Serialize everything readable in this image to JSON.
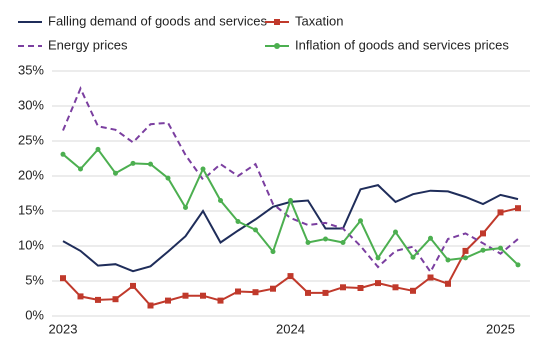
{
  "chart_data": {
    "type": "line",
    "categories": [
      "2023",
      null,
      null,
      null,
      null,
      null,
      null,
      null,
      null,
      null,
      null,
      null,
      null,
      "2024",
      null,
      null,
      null,
      null,
      null,
      null,
      null,
      null,
      null,
      null,
      null,
      "2025",
      null
    ],
    "series": [
      {
        "name": "Falling demand of goods and services",
        "color": "#1f2d5a",
        "marker": "none",
        "dash": false,
        "values": [
          10.7,
          9.3,
          7.2,
          7.4,
          6.4,
          7.1,
          9.2,
          11.4,
          15.0,
          10.5,
          12.2,
          13.8,
          15.6,
          16.3,
          16.5,
          12.5,
          12.5,
          18.1,
          18.7,
          16.3,
          17.4,
          17.9,
          17.8,
          17.0,
          16.0,
          17.3,
          16.7
        ]
      },
      {
        "name": "Taxation",
        "color": "#c0392b",
        "marker": "square",
        "dash": false,
        "values": [
          5.4,
          2.8,
          2.3,
          2.4,
          4.3,
          1.5,
          2.2,
          2.9,
          2.9,
          2.2,
          3.5,
          3.4,
          3.9,
          5.7,
          3.3,
          3.3,
          4.1,
          4.0,
          4.7,
          4.1,
          3.6,
          5.5,
          4.6,
          9.3,
          11.8,
          14.8,
          15.4
        ]
      },
      {
        "name": "Energy prices",
        "color": "#7b3fa0",
        "marker": "none",
        "dash": true,
        "values": [
          26.5,
          32.5,
          27.1,
          26.6,
          24.8,
          27.4,
          27.6,
          23.0,
          19.5,
          21.7,
          20.0,
          21.7,
          16.0,
          14.0,
          13.0,
          13.3,
          12.5,
          10.0,
          7.0,
          9.3,
          9.9,
          6.3,
          11.0,
          11.8,
          10.4,
          8.9,
          11.0
        ]
      },
      {
        "name": "Inflation of goods and services prices",
        "color": "#4caf50",
        "marker": "circle",
        "dash": false,
        "values": [
          23.1,
          21.0,
          23.8,
          20.4,
          21.8,
          21.7,
          19.7,
          15.5,
          21.0,
          16.5,
          13.5,
          12.3,
          9.2,
          16.5,
          10.5,
          11.0,
          10.5,
          13.6,
          8.3,
          12.0,
          8.4,
          11.1,
          8.0,
          8.3,
          9.4,
          9.7,
          7.3
        ]
      }
    ],
    "ylim": [
      0,
      35
    ],
    "yticks": [
      {
        "value": 0,
        "label": "0%"
      },
      {
        "value": 5,
        "label": "5%"
      },
      {
        "value": 10,
        "label": "10%"
      },
      {
        "value": 15,
        "label": "15%"
      },
      {
        "value": 20,
        "label": "20%"
      },
      {
        "value": 25,
        "label": "25%"
      },
      {
        "value": 30,
        "label": "30%"
      },
      {
        "value": 35,
        "label": "35%"
      }
    ],
    "grid": true
  }
}
